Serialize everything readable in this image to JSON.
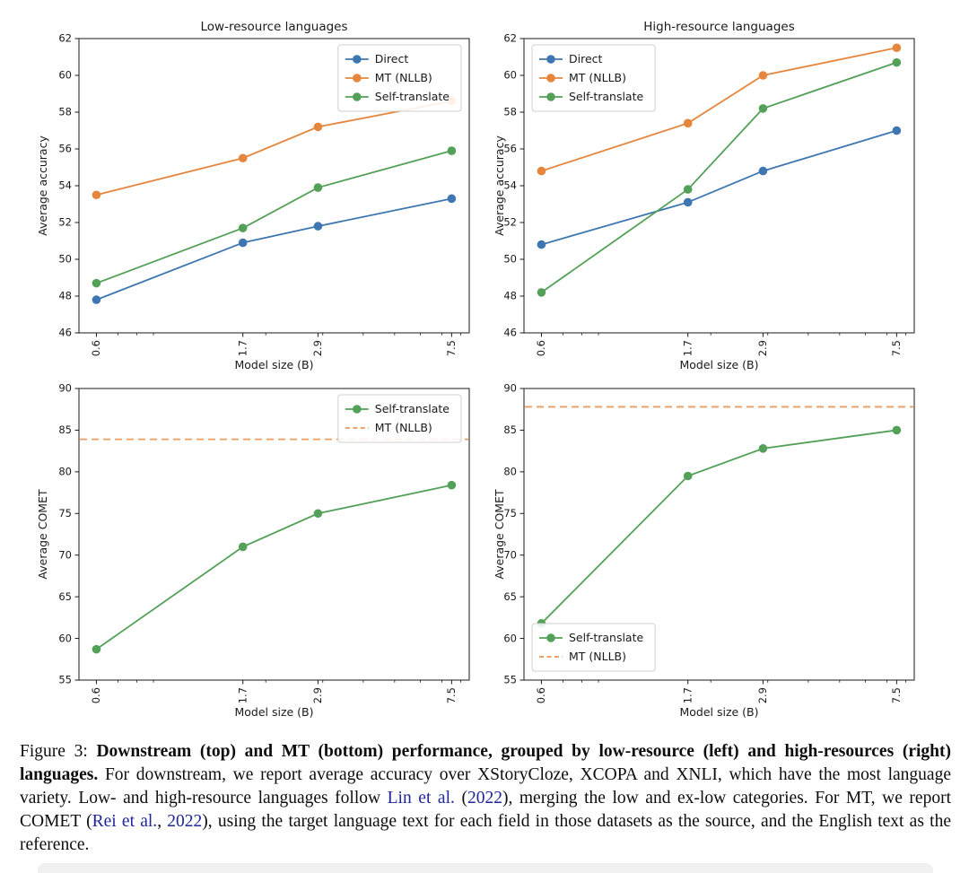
{
  "figure": {
    "caption": {
      "label": "Figure 3: ",
      "bold": "Downstream (top) and MT (bottom) performance, grouped by low-resource (left) and high-resources (right) languages.",
      "t1": " For downstream, we report average accuracy over XStoryCloze, XCOPA and XNLI, which have the most language variety. Low- and high-resource languages follow ",
      "cite1": "Lin et al.",
      "t2": " (",
      "cite2": "2022",
      "t3": "), merging the low and ex-low categories. For MT, we report COMET (",
      "cite3": "Rei et al.",
      "t4": ", ",
      "cite4": "2022",
      "t5": "), using the target language text for each field in those datasets as the source, and the English text as the reference."
    },
    "link_color": "#1e2699"
  },
  "chart_data": [
    {
      "type": "line",
      "title": "Low-resource languages",
      "xlabel": "Model size (B)",
      "ylabel": "Average accuracy",
      "x": [
        0.6,
        1.7,
        2.9,
        7.5
      ],
      "xticklabels": [
        "0.6",
        "1.7",
        "2.9",
        "7.5"
      ],
      "xscale": "log",
      "xlim": [
        0.53,
        8.5
      ],
      "ylim": [
        46,
        62
      ],
      "yticks": [
        46,
        48,
        50,
        52,
        54,
        56,
        58,
        60,
        62
      ],
      "grid": false,
      "legend": "upper-right",
      "series": [
        {
          "name": "Direct",
          "color": "#3D76B1",
          "style": "line-marker",
          "values": [
            47.8,
            50.9,
            51.8,
            53.3
          ]
        },
        {
          "name": "MT (NLLB)",
          "color": "#E6863C",
          "style": "line-marker",
          "values": [
            53.5,
            55.5,
            57.2,
            58.6
          ]
        },
        {
          "name": "Self-translate",
          "color": "#53A058",
          "style": "line-marker",
          "values": [
            48.7,
            51.7,
            53.9,
            55.9
          ]
        }
      ]
    },
    {
      "type": "line",
      "title": "High-resource languages",
      "xlabel": "Model size (B)",
      "ylabel": "Average accuracy",
      "x": [
        0.6,
        1.7,
        2.9,
        7.5
      ],
      "xticklabels": [
        "0.6",
        "1.7",
        "2.9",
        "7.5"
      ],
      "xscale": "log",
      "xlim": [
        0.53,
        8.5
      ],
      "ylim": [
        46,
        62
      ],
      "yticks": [
        46,
        48,
        50,
        52,
        54,
        56,
        58,
        60,
        62
      ],
      "grid": false,
      "legend": "upper-left",
      "series": [
        {
          "name": "Direct",
          "color": "#3D76B1",
          "style": "line-marker",
          "values": [
            50.8,
            53.1,
            54.8,
            57.0
          ]
        },
        {
          "name": "MT (NLLB)",
          "color": "#E6863C",
          "style": "line-marker",
          "values": [
            54.8,
            57.4,
            60.0,
            61.5
          ]
        },
        {
          "name": "Self-translate",
          "color": "#53A058",
          "style": "line-marker",
          "values": [
            48.2,
            53.8,
            58.2,
            60.7
          ]
        }
      ]
    },
    {
      "type": "line",
      "title": "",
      "xlabel": "Model size (B)",
      "ylabel": "Average COMET",
      "x": [
        0.6,
        1.7,
        2.9,
        7.5
      ],
      "xticklabels": [
        "0.6",
        "1.7",
        "2.9",
        "7.5"
      ],
      "xscale": "log",
      "xlim": [
        0.53,
        8.5
      ],
      "ylim": [
        55,
        90
      ],
      "yticks": [
        55,
        60,
        65,
        70,
        75,
        80,
        85,
        90
      ],
      "grid": false,
      "legend": "upper-right",
      "series": [
        {
          "name": "Self-translate",
          "color": "#53A058",
          "style": "line-marker",
          "values": [
            58.7,
            71.0,
            75.0,
            78.4
          ]
        },
        {
          "name": "MT (NLLB)",
          "color": "#E6863C",
          "style": "dashed-hline",
          "value": 83.9
        }
      ]
    },
    {
      "type": "line",
      "title": "",
      "xlabel": "Model size (B)",
      "ylabel": "Average COMET",
      "x": [
        0.6,
        1.7,
        2.9,
        7.5
      ],
      "xticklabels": [
        "0.6",
        "1.7",
        "2.9",
        "7.5"
      ],
      "xscale": "log",
      "xlim": [
        0.53,
        8.5
      ],
      "ylim": [
        55,
        90
      ],
      "yticks": [
        55,
        60,
        65,
        70,
        75,
        80,
        85,
        90
      ],
      "grid": false,
      "legend": "lower-left",
      "series": [
        {
          "name": "Self-translate",
          "color": "#53A058",
          "style": "line-marker",
          "values": [
            61.8,
            79.5,
            82.8,
            85.0
          ]
        },
        {
          "name": "MT (NLLB)",
          "color": "#E6863C",
          "style": "dashed-hline",
          "value": 87.8
        }
      ]
    }
  ]
}
